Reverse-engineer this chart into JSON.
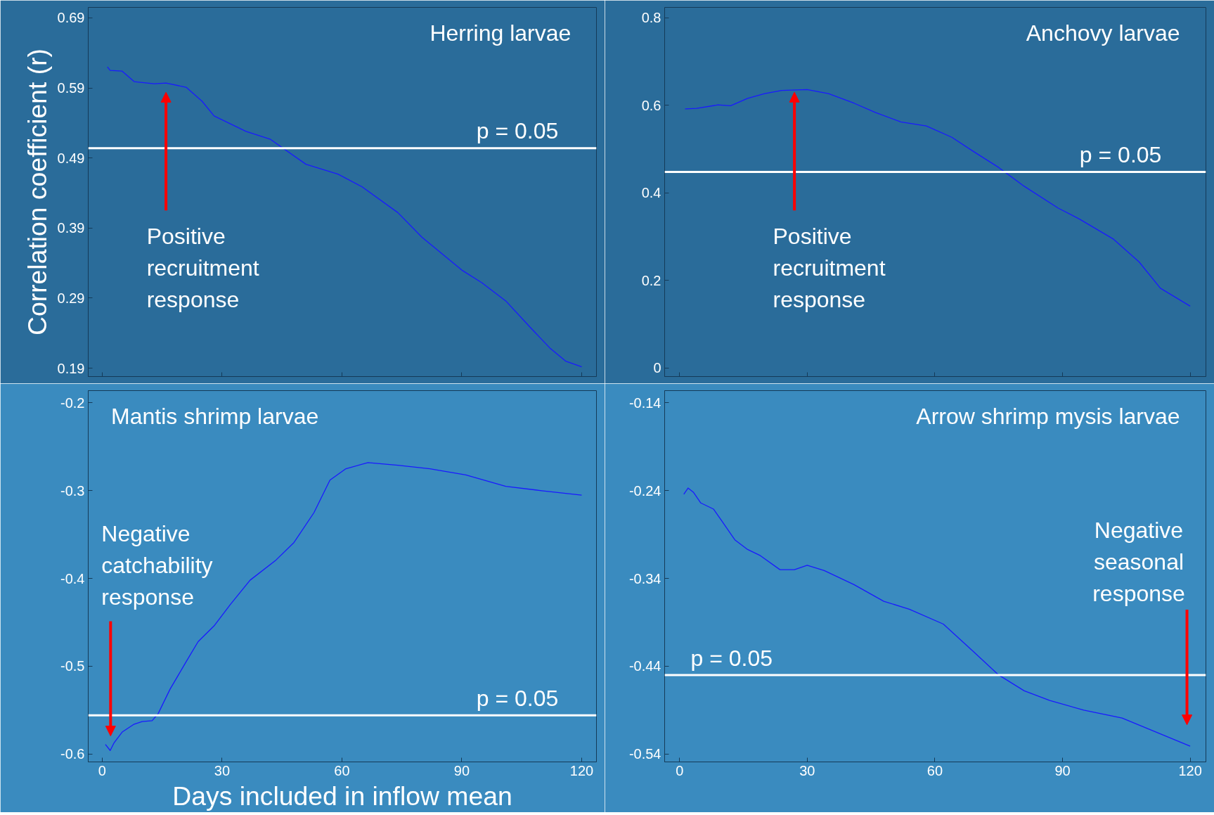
{
  "chart_data": [
    {
      "type": "line",
      "title": "Herring larvae",
      "ylabel": "Correlation coefficient (r)",
      "x": [
        1.3,
        2,
        5,
        8,
        13,
        16,
        21,
        25,
        28,
        36,
        42,
        51,
        59,
        65,
        74,
        80,
        90,
        95,
        101,
        107,
        112,
        116,
        120
      ],
      "series": [
        {
          "color": "#1a1aff",
          "values": [
            0.62,
            0.615,
            0.614,
            0.599,
            0.596,
            0.597,
            0.591,
            0.571,
            0.55,
            0.528,
            0.517,
            0.481,
            0.467,
            0.449,
            0.412,
            0.377,
            0.33,
            0.312,
            0.286,
            0.249,
            0.219,
            0.2,
            0.192
          ]
        }
      ],
      "xlim": [
        -3.5,
        123.7
      ],
      "xticks": [
        0,
        30,
        60,
        90,
        120
      ],
      "ylim": [
        0.178,
        0.705
      ],
      "yticks": [
        0.19,
        0.29,
        0.39,
        0.49,
        0.59,
        0.69
      ],
      "tick_labels": "y",
      "ref_lines": [
        {
          "axis": "y",
          "value": 0.504,
          "color": "#ffffff"
        }
      ],
      "annotations": [
        {
          "text": "p = 0.05",
          "y": 0.504
        },
        "Positive recruitment response"
      ]
    },
    {
      "type": "line",
      "title": "Anchovy larvae",
      "x": [
        1.3,
        4,
        9,
        12,
        16,
        20,
        24,
        30,
        35,
        41,
        46,
        52,
        58,
        64,
        69,
        75,
        81,
        89,
        94,
        102,
        108,
        113,
        120
      ],
      "series": [
        {
          "color": "#1a1aff",
          "values": [
            0.592,
            0.593,
            0.601,
            0.599,
            0.616,
            0.627,
            0.634,
            0.636,
            0.627,
            0.605,
            0.584,
            0.562,
            0.553,
            0.527,
            0.495,
            0.458,
            0.415,
            0.365,
            0.34,
            0.294,
            0.242,
            0.182,
            0.141
          ]
        }
      ],
      "xlim": [
        -3.5,
        123.7
      ],
      "xticks": [
        0,
        30,
        60,
        90,
        120
      ],
      "ylim": [
        -0.02,
        0.824
      ],
      "yticks": [
        0,
        0.2,
        0.4,
        0.6,
        0.8
      ],
      "tick_labels": "y",
      "ref_lines": [
        {
          "axis": "y",
          "value": 0.448,
          "color": "#ffffff"
        }
      ],
      "annotations": [
        {
          "text": "p = 0.05",
          "y": 0.448
        },
        {
          "text": "Positive recruitment response",
          "x": 27,
          "y": 0.63
        }
      ]
    },
    {
      "type": "line",
      "title": "Mantis shrimp larvae",
      "xlabel": "Days included in inflow mean",
      "x": [
        0.8,
        2,
        3,
        5,
        8,
        10,
        12.5,
        14,
        17,
        21,
        24,
        28,
        32,
        37,
        43.5,
        48,
        53,
        57,
        61,
        66.5,
        74,
        82,
        91,
        101,
        110,
        120
      ],
      "series": [
        {
          "color": "#1a1aff",
          "values": [
            -0.589,
            -0.596,
            -0.587,
            -0.575,
            -0.566,
            -0.563,
            -0.562,
            -0.554,
            -0.526,
            -0.495,
            -0.472,
            -0.454,
            -0.43,
            -0.402,
            -0.379,
            -0.359,
            -0.325,
            -0.288,
            -0.275,
            -0.268,
            -0.271,
            -0.275,
            -0.282,
            -0.295,
            -0.3,
            -0.305
          ]
        }
      ],
      "xlim": [
        -3.5,
        123.7
      ],
      "xticks": [
        0,
        30,
        60,
        90,
        120
      ],
      "ylim": [
        -0.609,
        -0.186
      ],
      "yticks": [
        -0.6,
        -0.5,
        -0.4,
        -0.3,
        -0.2
      ],
      "ref_lines": [
        {
          "axis": "y",
          "value": -0.556,
          "color": "#ffffff"
        }
      ],
      "annotations": [
        {
          "text": "p = 0.05",
          "y": -0.556
        },
        "Negative catchability response"
      ]
    },
    {
      "type": "line",
      "title": "Arrow shrimp mysis larvae",
      "x": [
        1,
        2,
        3.3,
        5,
        8,
        10,
        13,
        16,
        19,
        23.6,
        27,
        30,
        34,
        41,
        48,
        54,
        62,
        69,
        75,
        81,
        87,
        95,
        104,
        112,
        120
      ],
      "series": [
        {
          "color": "#1a1aff",
          "values": [
            -0.244,
            -0.237,
            -0.242,
            -0.254,
            -0.261,
            -0.275,
            -0.296,
            -0.307,
            -0.314,
            -0.33,
            -0.33,
            -0.325,
            -0.331,
            -0.347,
            -0.366,
            -0.375,
            -0.392,
            -0.423,
            -0.45,
            -0.468,
            -0.479,
            -0.49,
            -0.499,
            -0.515,
            -0.531
          ]
        }
      ],
      "xlim": [
        -3.5,
        123.7
      ],
      "xticks": [
        0,
        30,
        60,
        90,
        120
      ],
      "ylim": [
        -0.549,
        -0.126
      ],
      "yticks": [
        -0.54,
        -0.44,
        -0.34,
        -0.24,
        -0.14
      ],
      "ref_lines": [
        {
          "axis": "y",
          "value": -0.45,
          "color": "#ffffff"
        }
      ],
      "annotations": [
        {
          "text": "p = 0.05",
          "y": -0.45
        },
        "Negative seasonal response"
      ]
    }
  ]
}
